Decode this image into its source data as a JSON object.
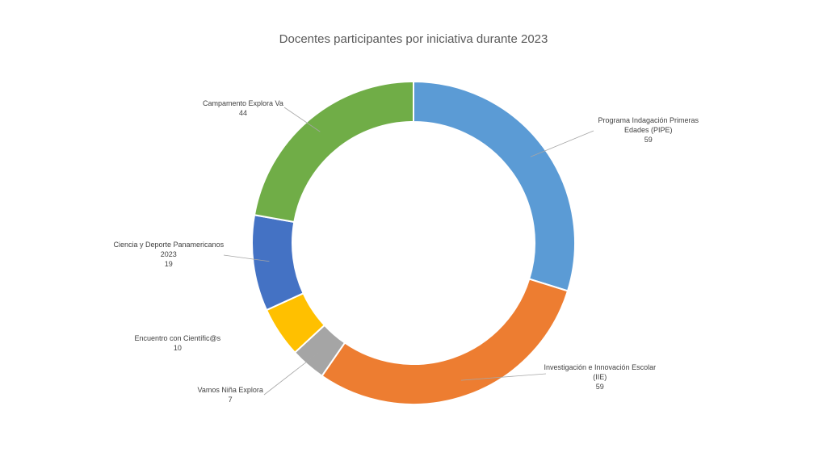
{
  "chart_data": {
    "type": "pie",
    "style": "doughnut",
    "title": "Docentes participantes por iniciativa durante 2023",
    "slices": [
      {
        "label_lines": [
          "Programa Indagación Primeras",
          "Edades (PIPE)"
        ],
        "value": 59,
        "value_text": "59",
        "color": "#5B9BD5"
      },
      {
        "label_lines": [
          "Investigación e Innovación Escolar",
          "(IIE)"
        ],
        "value": 59,
        "value_text": "59",
        "color": "#ED7D31"
      },
      {
        "label_lines": [
          "Vamos Niña Explora"
        ],
        "value": 7,
        "value_text": "7",
        "color": "#A5A5A5"
      },
      {
        "label_lines": [
          "Encuentro con Científic@s"
        ],
        "value": 10,
        "value_text": "10",
        "color": "#FFC000"
      },
      {
        "label_lines": [
          "Ciencia y Deporte Panamericanos",
          "2023"
        ],
        "value": 19,
        "value_text": "19",
        "color": "#4472C4"
      },
      {
        "label_lines": [
          "Campamento Explora Va"
        ],
        "value": 44,
        "value_text": "44",
        "color": "#70AD47"
      }
    ],
    "legend": "none"
  }
}
